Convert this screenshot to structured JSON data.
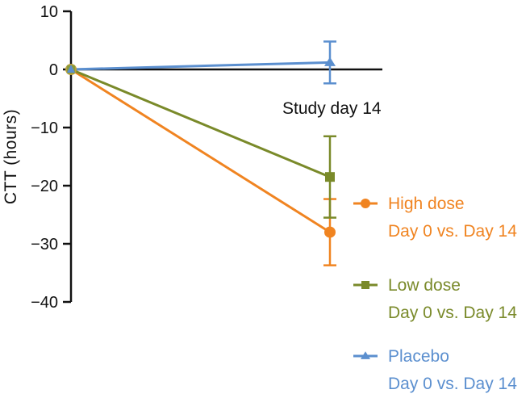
{
  "chart_data": {
    "type": "line",
    "ylabel": "CTT (hours)",
    "xlabel": "",
    "ylim": [
      -40,
      10
    ],
    "yticks": [
      10,
      0,
      -10,
      -20,
      -30,
      -40
    ],
    "ytick_labels": [
      "10",
      "0",
      "−10",
      "−20",
      "−30",
      "−40"
    ],
    "x": [
      0,
      14
    ],
    "annotation": "Study day 14",
    "grid": false,
    "legend_position": "right",
    "series": [
      {
        "id": "high",
        "name": "High dose",
        "name_line2": "Day 0 vs. Day 14",
        "color": "#f08421",
        "marker": "circle",
        "values": [
          0,
          -28
        ],
        "error": [
          0,
          5.7
        ]
      },
      {
        "id": "low",
        "name": "Low dose",
        "name_line2": "Day 0 vs. Day 14",
        "color": "#7a8a2a",
        "marker": "square",
        "values": [
          0,
          -18.5
        ],
        "error": [
          0,
          7
        ]
      },
      {
        "id": "placebo",
        "name": "Placebo",
        "name_line2": "Day 0 vs. Day 14",
        "color": "#5b8fcf",
        "marker": "triangle",
        "values": [
          0,
          1.2
        ],
        "error": [
          0,
          3.6
        ]
      }
    ]
  }
}
